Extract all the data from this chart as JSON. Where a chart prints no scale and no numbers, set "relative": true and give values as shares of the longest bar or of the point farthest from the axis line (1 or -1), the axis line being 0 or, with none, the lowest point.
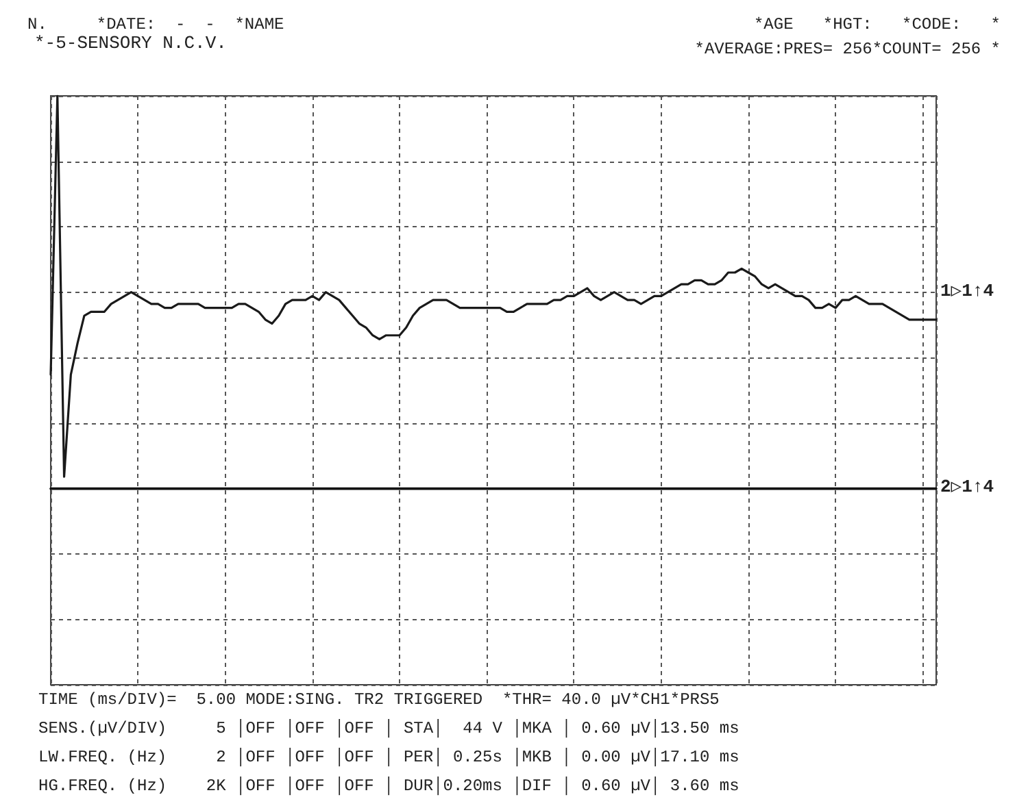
{
  "chart_data": {
    "type": "line",
    "relative": true,
    "grid": true,
    "marker": "none",
    "title": "*-5-SENSORY N.C.V.",
    "categories": [
      null,
      null,
      null,
      null,
      null,
      null,
      null,
      null,
      null,
      null,
      null,
      null,
      null,
      null,
      null,
      null,
      null,
      null,
      null,
      null,
      null,
      null,
      null,
      null,
      null,
      null,
      null,
      null,
      null,
      null,
      null,
      null,
      null,
      null,
      null,
      null,
      null,
      null,
      null,
      null,
      null,
      null,
      null,
      null,
      null,
      null,
      null,
      null,
      null,
      null,
      null,
      null,
      null,
      null,
      null,
      null,
      null,
      null,
      null,
      null,
      null,
      null,
      null,
      null,
      null,
      null,
      null,
      null,
      null,
      null,
      null,
      null,
      null,
      null,
      null,
      null,
      null,
      null,
      null,
      null,
      null,
      null,
      null,
      null,
      null,
      null,
      null,
      null,
      null,
      null,
      null,
      null,
      null,
      null,
      null,
      null,
      null,
      null,
      null,
      null,
      null,
      null,
      null,
      null,
      null,
      null,
      null,
      null,
      null,
      null,
      null,
      null,
      null,
      null,
      null,
      null,
      null,
      null,
      null,
      null,
      null,
      null,
      null,
      null,
      null,
      null,
      null,
      null,
      null,
      null,
      null,
      null,
      null
    ],
    "series": [
      {
        "color": "#1a1a1a",
        "values": [
          0.29,
          1,
          0.03,
          0.29,
          0.37,
          0.44,
          0.45,
          0.45,
          0.45,
          0.47,
          0.48,
          0.49,
          0.5,
          0.49,
          0.48,
          0.47,
          0.47,
          0.46,
          0.46,
          0.47,
          0.47,
          0.47,
          0.47,
          0.46,
          0.46,
          0.46,
          0.46,
          0.46,
          0.47,
          0.47,
          0.46,
          0.45,
          0.43,
          0.42,
          0.44,
          0.47,
          0.48,
          0.48,
          0.48,
          0.49,
          0.48,
          0.5,
          0.49,
          0.48,
          0.46,
          0.44,
          0.42,
          0.41,
          0.39,
          0.38,
          0.39,
          0.39,
          0.39,
          0.41,
          0.44,
          0.46,
          0.47,
          0.48,
          0.48,
          0.48,
          0.47,
          0.46,
          0.46,
          0.46,
          0.46,
          0.46,
          0.46,
          0.46,
          0.45,
          0.45,
          0.46,
          0.47,
          0.47,
          0.47,
          0.47,
          0.48,
          0.48,
          0.49,
          0.49,
          0.5,
          0.51,
          0.49,
          0.48,
          0.49,
          0.5,
          0.49,
          0.48,
          0.48,
          0.47,
          0.48,
          0.49,
          0.49,
          0.5,
          0.51,
          0.52,
          0.52,
          0.53,
          0.53,
          0.52,
          0.52,
          0.53,
          0.55,
          0.55,
          0.56,
          0.55,
          0.54,
          0.52,
          0.51,
          0.52,
          0.51,
          0.5,
          0.49,
          0.49,
          0.48,
          0.46,
          0.46,
          0.47,
          0.46,
          0.48,
          0.48,
          0.49,
          0.48,
          0.47,
          0.47,
          0.47,
          0.46,
          0.45,
          0.44,
          0.43,
          0.43,
          0.43,
          0.43,
          0.43
        ]
      },
      {
        "color": "#111111",
        "values": [
          0,
          0,
          0,
          0,
          0,
          0,
          0,
          0,
          0,
          0,
          0,
          0,
          0,
          0,
          0,
          0,
          0,
          0,
          0,
          0,
          0,
          0,
          0,
          0,
          0,
          0,
          0,
          0,
          0,
          0,
          0,
          0,
          0,
          0,
          0,
          0,
          0,
          0,
          0,
          0,
          0,
          0,
          0,
          0,
          0,
          0,
          0,
          0,
          0,
          0,
          0,
          0,
          0,
          0,
          0,
          0,
          0,
          0,
          0,
          0,
          0,
          0,
          0,
          0,
          0,
          0,
          0,
          0,
          0,
          0,
          0,
          0,
          0,
          0,
          0,
          0,
          0,
          0,
          0,
          0,
          0,
          0,
          0,
          0,
          0,
          0,
          0,
          0,
          0,
          0,
          0,
          0,
          0,
          0,
          0,
          0,
          0,
          0,
          0,
          0,
          0,
          0,
          0,
          0,
          0,
          0,
          0,
          0,
          0,
          0,
          0,
          0,
          0,
          0,
          0,
          0,
          0,
          0,
          0,
          0,
          0,
          0,
          0,
          0,
          0,
          0,
          0,
          0,
          0,
          0,
          0,
          0,
          0
        ]
      }
    ],
    "annotations": [
      "N.     *DATE:  -  -  *NAME",
      "*AGE   *HGT:   *CODE:   *",
      "*AVERAGE:PRES= 256*COUNT= 256 *",
      "TIME (ms/DIV)=  5.00 MODE:SING. TR2 TRIGGERED  *THR= 40.0 µV*CH1*PRS5",
      "SENS.(µV/DIV)     5 │OFF │OFF │OFF │ STA│  44 V │MKA │ 0.60 µV│13.50 ms",
      "LW.FREQ. (Hz)     2 │OFF │OFF │OFF │ PER│ 0.25s │MKB │ 0.00 µV│17.10 ms",
      "HG.FREQ. (Hz)    2K │OFF │OFF │OFF │ DUR│0.20ms │DIF │ 0.60 µV│ 3.60 ms",
      "1▷1↑4",
      "2▷1↑4"
    ]
  }
}
